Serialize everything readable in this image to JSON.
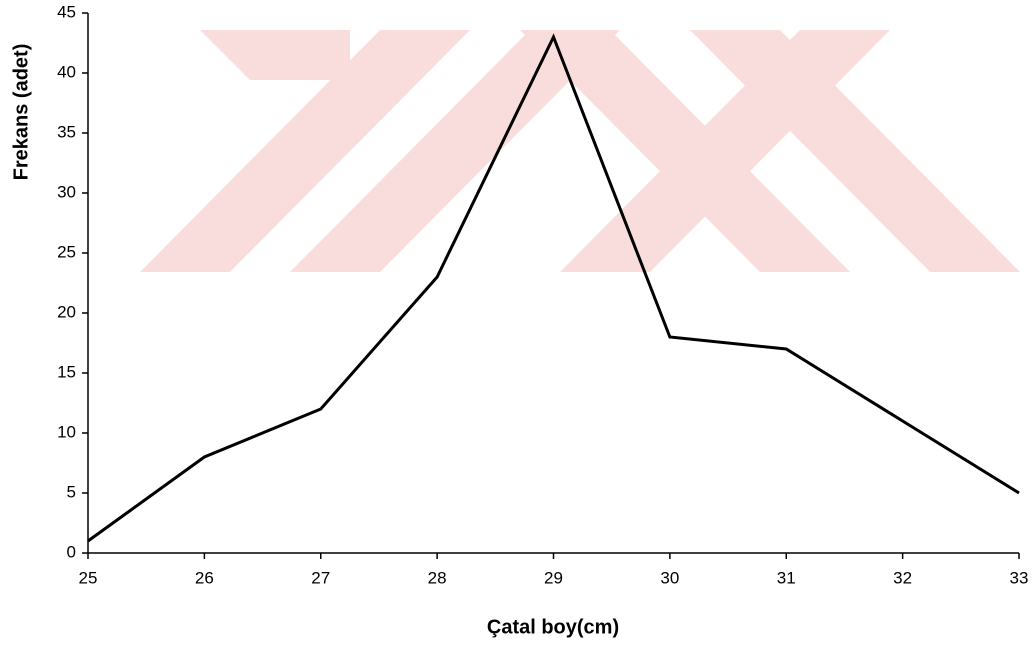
{
  "chart_data": {
    "type": "line",
    "x_label": "Çatal boy(cm)",
    "y_label": "Frekans (adet)",
    "x": [
      25,
      26,
      27,
      28,
      29,
      30,
      31,
      32,
      33
    ],
    "series": [
      {
        "color": "#000000",
        "values": [
          1,
          8,
          12,
          23,
          43,
          18,
          17,
          11,
          5
        ]
      }
    ],
    "xlim": [
      25,
      33
    ],
    "xticks": [
      25,
      26,
      27,
      28,
      29,
      30,
      31,
      32,
      33
    ],
    "ylim": [
      0,
      45
    ],
    "yticks": [
      0,
      5,
      10,
      15,
      20,
      25,
      30,
      35,
      40,
      45
    ]
  }
}
